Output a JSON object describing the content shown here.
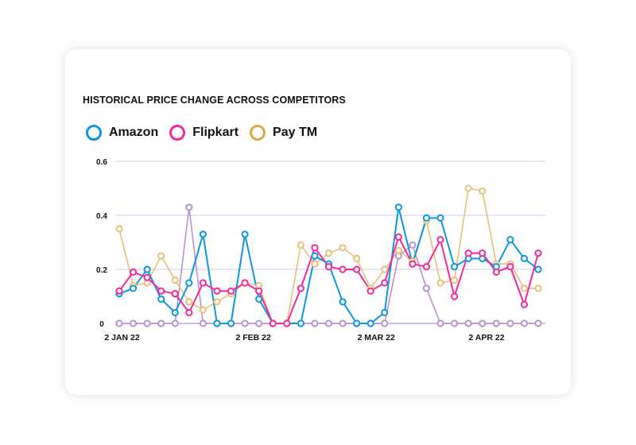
{
  "chart_data": {
    "type": "line",
    "title": "HISTORICAL PRICE CHANGE ACROSS COMPETITORS",
    "x_tick_labels": [
      "2 JAN 22",
      "2 FEB 22",
      "2 MAR 22",
      "2 APR 22"
    ],
    "y_tick_labels": [
      "0",
      "0.2",
      "0.4",
      "0.6"
    ],
    "ylim": [
      0,
      0.6
    ],
    "grid": true,
    "legend_placement": "top-left",
    "series": [
      {
        "name": "Amazon",
        "color": "#0c96e8",
        "values": [
          0.11,
          0.13,
          0.2,
          0.09,
          0.04,
          0.15,
          0.33,
          0,
          0,
          0.33,
          0.09,
          0,
          0,
          0,
          0.25,
          0.22,
          0.08,
          0,
          0,
          0.04,
          0.43,
          0.22,
          0.39,
          0.39,
          0.21,
          0.24,
          0.24,
          0.21,
          0.31,
          0.24,
          0.2
        ]
      },
      {
        "name": "Flipkart",
        "color": "#f5299a",
        "values": [
          0.12,
          0.19,
          0.17,
          0.12,
          0.11,
          0.04,
          0.15,
          0.12,
          0.12,
          0.15,
          0.12,
          0,
          0,
          0.13,
          0.28,
          0.21,
          0.2,
          0.2,
          0.12,
          0.15,
          0.32,
          0.22,
          0.21,
          0.31,
          0.1,
          0.26,
          0.26,
          0.19,
          0.21,
          0.07,
          0.26
        ]
      },
      {
        "name": "Pay TM",
        "color": "#e8c078",
        "values": [
          0.35,
          0.14,
          0.15,
          0.25,
          0.16,
          0.08,
          0.05,
          0.08,
          0.11,
          0.15,
          0.14,
          0,
          0,
          0.29,
          0.22,
          0.26,
          0.28,
          0.24,
          0.13,
          0.2,
          0.27,
          0.23,
          0.38,
          0.15,
          0.16,
          0.5,
          0.49,
          0.22,
          0.22,
          0.13,
          0.13
        ]
      },
      {
        "color": "#b893cf",
        "values": [
          0,
          0,
          0,
          0,
          0,
          0.43,
          0,
          0,
          0,
          0,
          0,
          0,
          0,
          0,
          0,
          0,
          0,
          0,
          0,
          0,
          0.25,
          0.29,
          0.13,
          0,
          0,
          0,
          0,
          0,
          0,
          0,
          0
        ]
      }
    ]
  }
}
